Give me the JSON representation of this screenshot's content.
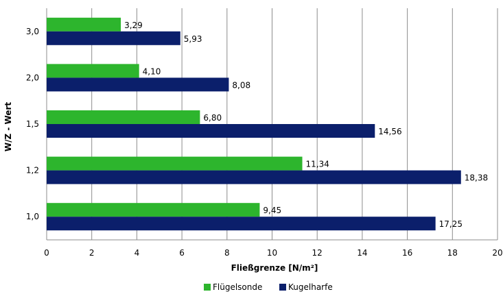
{
  "chart_data": {
    "type": "bar",
    "orientation": "horizontal",
    "categories": [
      "1,0",
      "1,2",
      "1,5",
      "2,0",
      "3,0"
    ],
    "series": [
      {
        "name": "Flügelsonde",
        "color": "#2db52d",
        "values": [
          9.45,
          11.34,
          6.8,
          4.1,
          3.29
        ],
        "labels": [
          "9,45",
          "11,34",
          "6,80",
          "4,10",
          "3,29"
        ]
      },
      {
        "name": "Kugelharfe",
        "color": "#0b1f6b",
        "values": [
          17.25,
          18.38,
          14.56,
          8.08,
          5.93
        ],
        "labels": [
          "17,25",
          "18,38",
          "14,56",
          "8,08",
          "5,93"
        ]
      }
    ],
    "xlabel": "Fließgrenze [N/m²]",
    "ylabel": "W/Z - Wert",
    "xlim": [
      0,
      20
    ],
    "xticks": [
      0,
      2,
      4,
      6,
      8,
      10,
      12,
      14,
      16,
      18,
      20
    ],
    "grid": "vertical",
    "legend": "bottom"
  }
}
